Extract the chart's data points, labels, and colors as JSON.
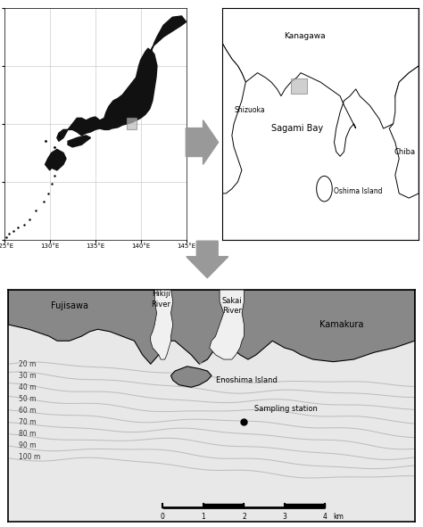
{
  "fig_width": 4.74,
  "fig_height": 5.91,
  "dpi": 100,
  "background_color": "#ffffff",
  "land_color_dark": "#111111",
  "land_color_gray": "#999999",
  "land_color_light": "#cccccc",
  "sea_color": "#f0f0f0",
  "contour_color": "#aaaaaa",
  "arrow_color": "#999999",
  "depth_labels": [
    "20 m",
    "30 m",
    "40 m",
    "50 m",
    "60 m",
    "70 m",
    "80 m",
    "90 m",
    "100 m"
  ]
}
